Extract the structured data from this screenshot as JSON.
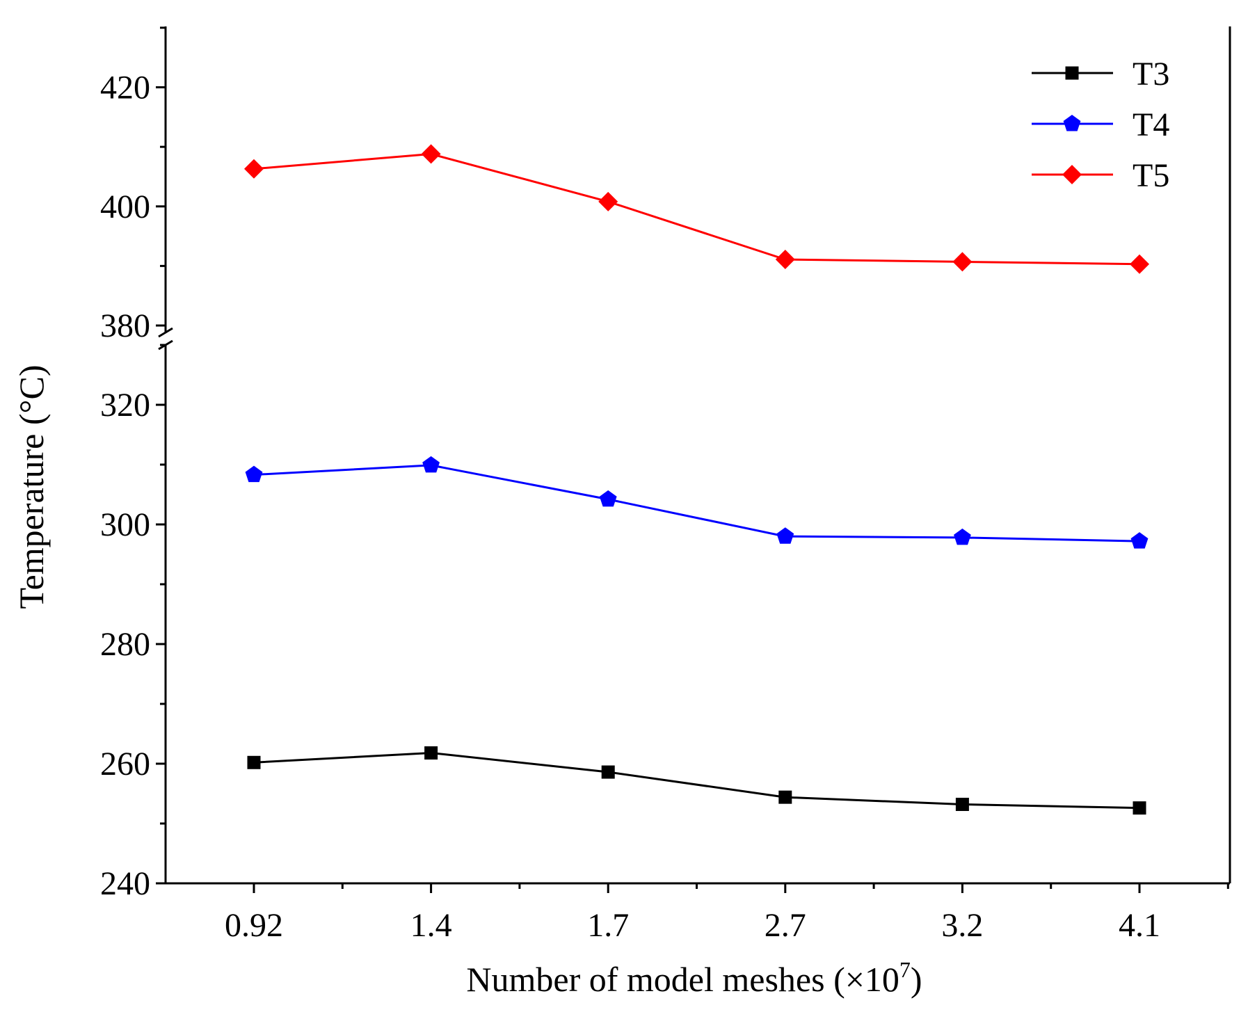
{
  "chart_data": {
    "type": "line",
    "title": "",
    "xlabel": "Number of model meshes (×10",
    "xlabel_exponent": "7",
    "xlabel_suffix": ")",
    "ylabel": "Temperature (°C)",
    "categories": [
      "0.92",
      "1.4",
      "1.7",
      "2.7",
      "3.2",
      "4.1"
    ],
    "y_segments": [
      {
        "range": [
          240,
          330
        ],
        "ticks": [
          240,
          260,
          280,
          300,
          320
        ]
      },
      {
        "range": [
          380,
          430
        ],
        "ticks": [
          380,
          400,
          420
        ]
      }
    ],
    "axis_break": true,
    "legend_position": "top-right",
    "series": [
      {
        "name": "T3",
        "color": "#000000",
        "marker": "square",
        "values": [
          260.2,
          261.8,
          258.6,
          254.4,
          253.2,
          252.6
        ]
      },
      {
        "name": "T4",
        "color": "#0000ff",
        "marker": "pentagon",
        "values": [
          308.3,
          309.9,
          304.2,
          298.0,
          297.8,
          297.2
        ]
      },
      {
        "name": "T5",
        "color": "#ff0000",
        "marker": "diamond",
        "values": [
          406.3,
          408.8,
          400.8,
          391.1,
          390.7,
          390.3
        ]
      }
    ]
  }
}
